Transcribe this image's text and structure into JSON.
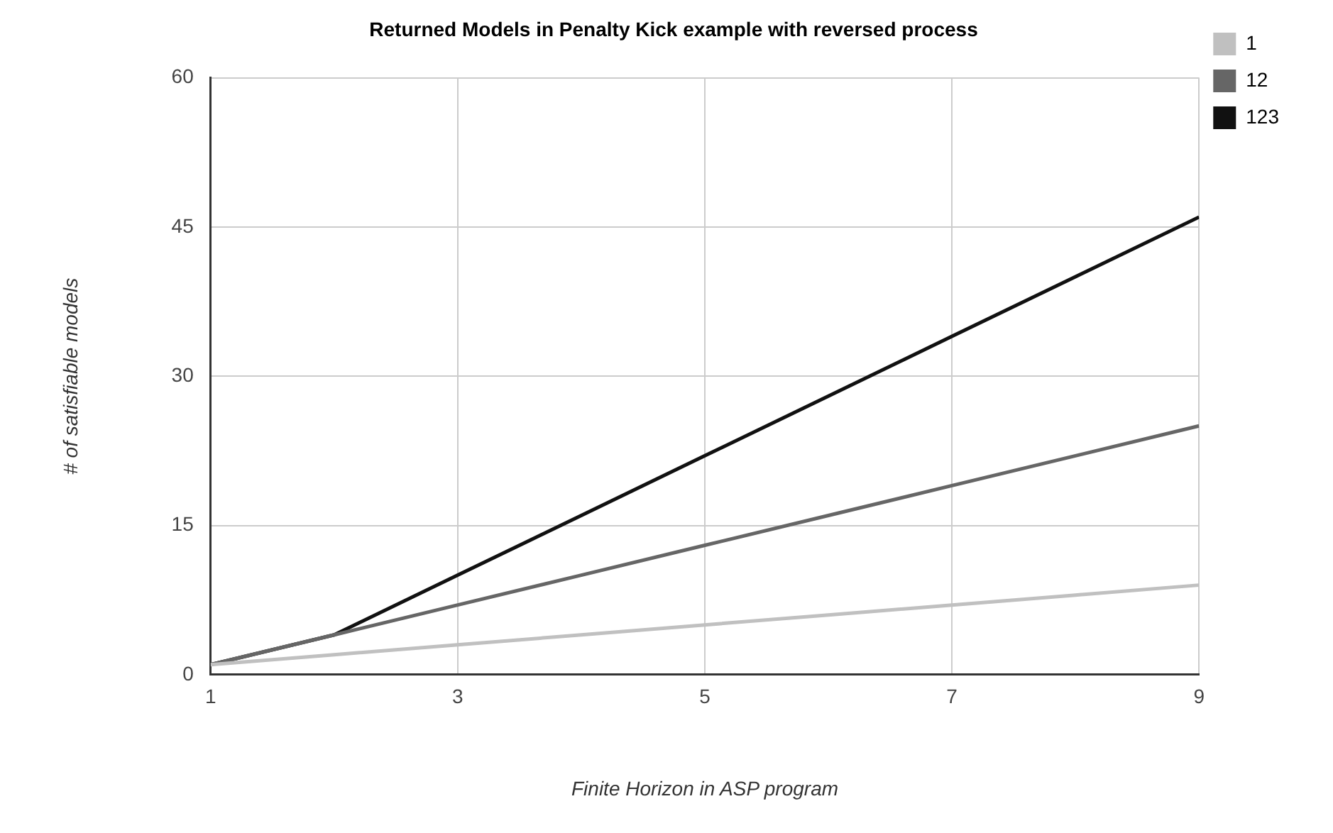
{
  "chart_data": {
    "type": "line",
    "title": "Returned Models in Penalty Kick example with reversed process",
    "xlabel": "Finite Horizon in ASP program",
    "ylabel": "# of satisfiable models",
    "x": [
      1,
      2,
      3,
      4,
      5,
      6,
      7,
      8,
      9
    ],
    "series": [
      {
        "name": "1",
        "color": "#c0c0c0",
        "values": [
          1,
          2,
          3,
          4,
          5,
          6,
          7,
          8,
          9
        ]
      },
      {
        "name": "12",
        "color": "#666666",
        "values": [
          1,
          4,
          7,
          10,
          13,
          16,
          19,
          22,
          25
        ]
      },
      {
        "name": "123",
        "color": "#111111",
        "values": [
          1,
          4,
          10,
          16,
          22,
          28,
          34,
          40,
          46
        ]
      }
    ],
    "xlim": [
      1,
      9
    ],
    "xticks": [
      1,
      3,
      5,
      7,
      9
    ],
    "ylim": [
      0,
      60
    ],
    "yticks": [
      0,
      15,
      30,
      45,
      60
    ],
    "grid": true,
    "legend": "top right",
    "marker": "none",
    "line_style": "solid"
  }
}
